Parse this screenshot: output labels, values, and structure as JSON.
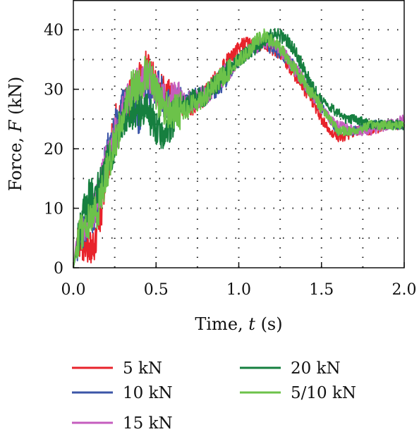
{
  "chart_data": {
    "type": "line",
    "xlabel": {
      "prefix": "Time, ",
      "var": "t",
      "unit": " (s)"
    },
    "ylabel": {
      "prefix": "Force, ",
      "var": "F",
      "unit": " (kN)"
    },
    "xlim": [
      0,
      2.0
    ],
    "ylim": [
      0,
      45
    ],
    "xticks": [
      0.0,
      0.5,
      1.0,
      1.5,
      2.0
    ],
    "xtick_labels": [
      "0.0",
      "0.5",
      "1.0",
      "1.5",
      "2.0"
    ],
    "yticks": [
      0,
      10,
      20,
      30,
      40
    ],
    "ytick_labels": [
      "0",
      "10",
      "20",
      "30",
      "40"
    ],
    "grid": true,
    "legend_position": "bottom",
    "series": [
      {
        "name": "5 kN",
        "color": "#e8232b",
        "x": [
          0.0,
          0.02,
          0.04,
          0.06,
          0.08,
          0.1,
          0.12,
          0.15,
          0.2,
          0.25,
          0.3,
          0.35,
          0.4,
          0.45,
          0.5,
          0.55,
          0.6,
          0.7,
          0.8,
          0.9,
          1.0,
          1.05,
          1.1,
          1.15,
          1.2,
          1.25,
          1.3,
          1.35,
          1.4,
          1.45,
          1.5,
          1.55,
          1.6,
          1.65,
          1.7,
          1.8,
          1.9,
          2.0
        ],
        "y": [
          0,
          4,
          5,
          4,
          3,
          4,
          3,
          7,
          15,
          24,
          27,
          29,
          32,
          34,
          30,
          29,
          28,
          27,
          29,
          33,
          37,
          38,
          37,
          38,
          37,
          36,
          34,
          32,
          30,
          28,
          25,
          23,
          22,
          22,
          23,
          23,
          24,
          24
        ]
      },
      {
        "name": "10 kN",
        "color": "#3b55a7",
        "x": [
          0.0,
          0.02,
          0.05,
          0.1,
          0.15,
          0.2,
          0.25,
          0.3,
          0.35,
          0.4,
          0.45,
          0.5,
          0.55,
          0.6,
          0.7,
          0.8,
          0.9,
          1.0,
          1.05,
          1.1,
          1.15,
          1.2,
          1.25,
          1.3,
          1.35,
          1.4,
          1.45,
          1.5,
          1.55,
          1.6,
          1.7,
          1.8,
          1.9,
          2.0
        ],
        "y": [
          0,
          4,
          6,
          8,
          11,
          19,
          24,
          27,
          28,
          25,
          30,
          31,
          28,
          27,
          28,
          29,
          31,
          35,
          36,
          37,
          38,
          37,
          36,
          35,
          33,
          31,
          29,
          27,
          25,
          23,
          23,
          24,
          24,
          24
        ]
      },
      {
        "name": "15 kN",
        "color": "#c55dbe",
        "x": [
          0.0,
          0.02,
          0.05,
          0.1,
          0.15,
          0.2,
          0.25,
          0.3,
          0.35,
          0.4,
          0.45,
          0.5,
          0.55,
          0.6,
          0.7,
          0.8,
          0.9,
          1.0,
          1.05,
          1.1,
          1.15,
          1.2,
          1.25,
          1.3,
          1.35,
          1.4,
          1.45,
          1.5,
          1.55,
          1.6,
          1.7,
          1.8,
          1.9,
          2.0
        ],
        "y": [
          0,
          5,
          7,
          8,
          12,
          18,
          22,
          26,
          29,
          31,
          32,
          30,
          28,
          28,
          28,
          29,
          32,
          35,
          36,
          37,
          38,
          38,
          37,
          35,
          33,
          31,
          29,
          27,
          25,
          24,
          23,
          23,
          24,
          25
        ]
      },
      {
        "name": "20 kN",
        "color": "#167f3f",
        "x": [
          0.0,
          0.02,
          0.05,
          0.1,
          0.15,
          0.2,
          0.25,
          0.3,
          0.35,
          0.4,
          0.45,
          0.5,
          0.55,
          0.6,
          0.65,
          0.7,
          0.8,
          0.9,
          1.0,
          1.05,
          1.1,
          1.15,
          1.2,
          1.25,
          1.3,
          1.35,
          1.4,
          1.45,
          1.5,
          1.55,
          1.6,
          1.65,
          1.7,
          1.8,
          1.9,
          2.0
        ],
        "y": [
          0,
          3,
          8,
          12,
          13,
          17,
          21,
          25,
          26,
          27,
          26,
          24,
          22,
          25,
          27,
          28,
          29,
          32,
          35,
          36,
          37,
          38,
          39,
          39,
          38,
          36,
          33,
          30,
          28,
          27,
          26,
          25,
          25,
          24,
          24,
          24
        ]
      },
      {
        "name": "5/10 kN",
        "color": "#6cc24a",
        "x": [
          0.0,
          0.02,
          0.05,
          0.1,
          0.15,
          0.2,
          0.25,
          0.3,
          0.35,
          0.4,
          0.45,
          0.5,
          0.55,
          0.6,
          0.7,
          0.8,
          0.9,
          1.0,
          1.05,
          1.1,
          1.15,
          1.2,
          1.25,
          1.3,
          1.35,
          1.4,
          1.45,
          1.5,
          1.55,
          1.6,
          1.7,
          1.8,
          1.9,
          2.0
        ],
        "y": [
          0,
          4,
          6,
          8,
          10,
          16,
          21,
          25,
          30,
          31,
          33,
          29,
          27,
          26,
          27,
          29,
          32,
          35,
          36,
          38,
          39,
          38,
          37,
          35,
          33,
          31,
          29,
          27,
          25,
          23,
          23,
          24,
          24,
          24
        ]
      }
    ]
  }
}
